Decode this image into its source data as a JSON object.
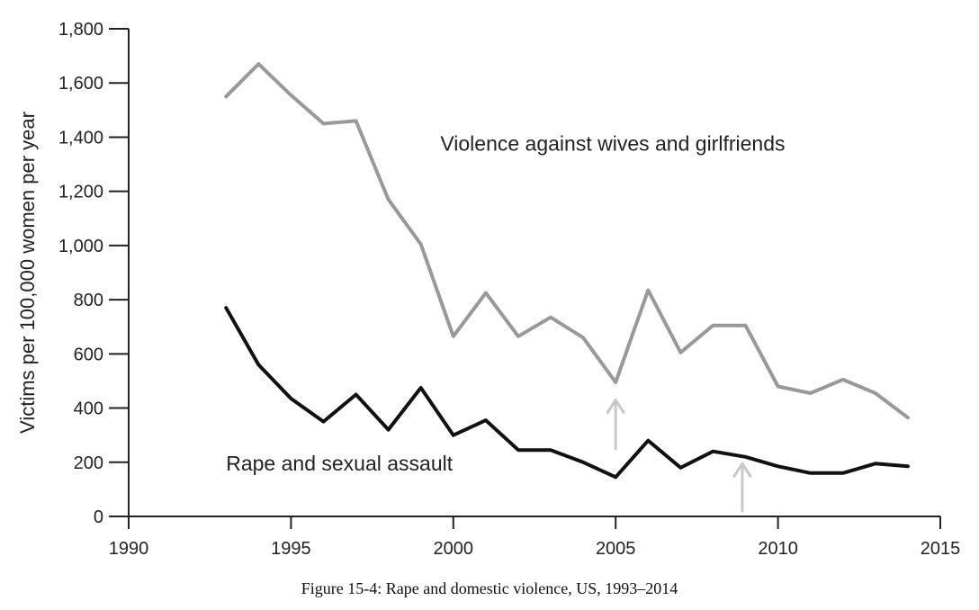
{
  "chart_data": {
    "type": "line",
    "title": "",
    "caption": "Figure 15-4: Rape and domestic violence, US, 1993–2014",
    "xlabel": "",
    "ylabel": "Victims per 100,000 women per year",
    "xlim": [
      1990,
      2015
    ],
    "ylim": [
      0,
      1800
    ],
    "x_ticks": [
      1990,
      1995,
      2000,
      2005,
      2010,
      2015
    ],
    "x_tick_labels": [
      "1990",
      "1995",
      "2000",
      "2005",
      "2010",
      "2015"
    ],
    "y_ticks": [
      0,
      200,
      400,
      600,
      800,
      1000,
      1200,
      1400,
      1600,
      1800
    ],
    "y_tick_labels": [
      "0",
      "200",
      "400",
      "600",
      "800",
      "1,000",
      "1,200",
      "1,400",
      "1,600",
      "1,800"
    ],
    "grid": false,
    "legend": "none (inline labels)",
    "series": [
      {
        "name": "Violence against wives and girlfriends",
        "color": "#999999",
        "x": [
          1993,
          1994,
          1995,
          1996,
          1997,
          1998,
          1999,
          2000,
          2001,
          2002,
          2003,
          2004,
          2005,
          2006,
          2007,
          2008,
          2009,
          2010,
          2011,
          2012,
          2013,
          2014
        ],
        "values": [
          1550,
          1670,
          1555,
          1450,
          1460,
          1170,
          1005,
          665,
          825,
          665,
          735,
          660,
          495,
          835,
          605,
          705,
          705,
          480,
          455,
          505,
          455,
          365
        ],
        "label_pos": {
          "x": 1999.6,
          "y": 1350
        }
      },
      {
        "name": "Rape and sexual assault",
        "color": "#111111",
        "x": [
          1993,
          1994,
          1995,
          1996,
          1997,
          1998,
          1999,
          2000,
          2001,
          2002,
          2003,
          2004,
          2005,
          2006,
          2007,
          2008,
          2009,
          2010,
          2011,
          2012,
          2013,
          2014
        ],
        "values": [
          770,
          560,
          435,
          350,
          450,
          320,
          475,
          300,
          355,
          245,
          245,
          200,
          145,
          280,
          180,
          240,
          220,
          185,
          160,
          160,
          195,
          185
        ],
        "label_pos": {
          "x": 1993,
          "y": 170
        }
      }
    ],
    "annotations": [
      {
        "type": "arrow",
        "color": "#c8c8c8",
        "x": 2005,
        "y_from": 250,
        "y_to": 430
      },
      {
        "type": "arrow",
        "color": "#c8c8c8",
        "x": 2008.9,
        "y_from": 20,
        "y_to": 195
      }
    ]
  }
}
